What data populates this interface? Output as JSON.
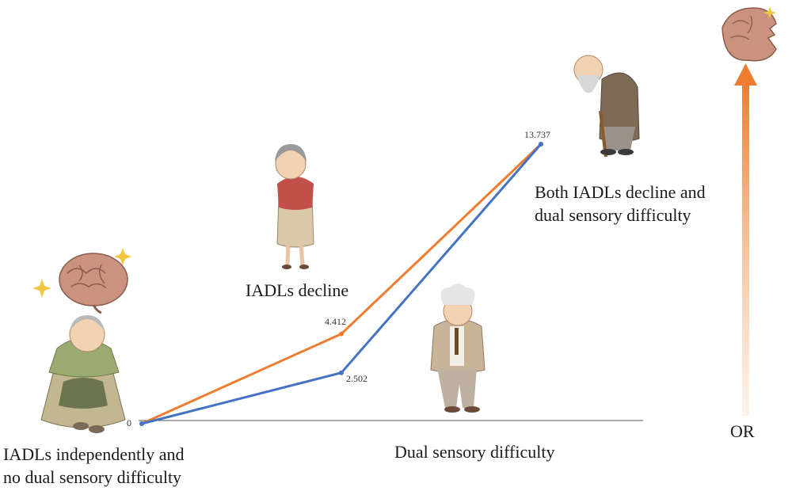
{
  "chart_data": {
    "type": "line",
    "categories": [
      "IADLs independently and no dual sensory difficulty",
      "IADLs decline / Dual sensory difficulty",
      "Both IADLs decline and dual sensory difficulty"
    ],
    "series": [
      {
        "values": [
          0,
          4.412,
          13.737
        ],
        "color": "#ee7d31"
      },
      {
        "values": [
          0,
          2.502,
          13.737
        ],
        "color": "#4472c4"
      }
    ],
    "value_labels": [
      "0",
      "4.412",
      "2.502",
      "13.737"
    ],
    "ylabel": "OR",
    "ylim": [
      0,
      15
    ],
    "grid": false
  },
  "labels": {
    "start_line1": "IADLs independently and",
    "start_line2": "no dual sensory difficulty",
    "iadl": "IADLs decline",
    "dual": "Dual sensory difficulty",
    "both_line1": "Both IADLs decline and",
    "both_line2": "dual sensory difficulty",
    "axis": "OR"
  },
  "illustrations": [
    "healthy-brain-icon",
    "smiling-elderly-woman-icon",
    "worried-elderly-woman-icon",
    "elderly-man-glasses-icon",
    "elderly-man-with-cane-icon",
    "damaged-brain-icon"
  ]
}
